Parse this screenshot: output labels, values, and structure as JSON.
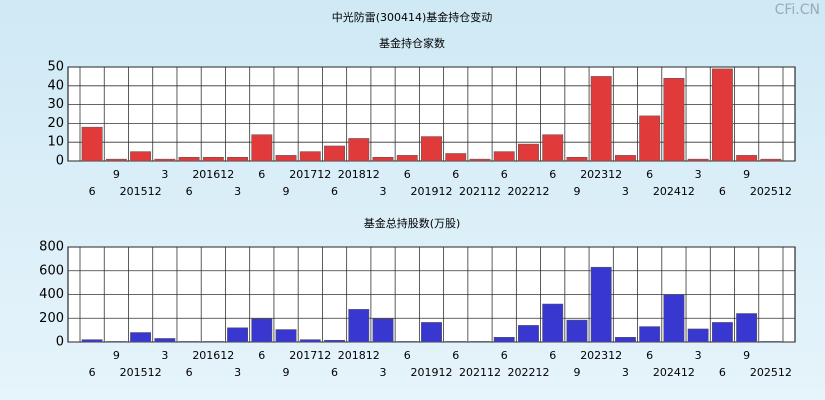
{
  "title": "中光防雷(300414)基金持仓变动",
  "watermark": "CFi.CN",
  "chart_data": [
    {
      "type": "bar",
      "title": "基金持仓家数",
      "color": "#e03a3a",
      "grid": true,
      "categories": [
        "6",
        "9",
        "201512",
        "3",
        "6",
        "201612",
        "3",
        "6",
        "9",
        "201712",
        "6",
        "201812",
        "3",
        "6",
        "201912",
        "6",
        "202112",
        "6",
        "202212",
        "6",
        "9",
        "202312",
        "3",
        "6",
        "202412",
        "3",
        "6",
        "9",
        "202512"
      ],
      "values": [
        18,
        1,
        5,
        1,
        2,
        2,
        2,
        14,
        3,
        5,
        8,
        12,
        2,
        3,
        13,
        4,
        1,
        5,
        9,
        14,
        2,
        45,
        3,
        24,
        44,
        1,
        49,
        3,
        1
      ],
      "ylim": [
        0,
        50
      ],
      "yticks": [
        0,
        10,
        20,
        30,
        40,
        50
      ]
    },
    {
      "type": "bar",
      "title": "基金总持股数(万股)",
      "color": "#3838d0",
      "grid": true,
      "categories": [
        "6",
        "9",
        "201512",
        "3",
        "6",
        "201612",
        "3",
        "6",
        "9",
        "201712",
        "6",
        "201812",
        "3",
        "6",
        "201912",
        "6",
        "202112",
        "6",
        "202212",
        "6",
        "9",
        "202312",
        "3",
        "6",
        "202412",
        "3",
        "6",
        "9",
        "202512"
      ],
      "values": [
        20,
        5,
        80,
        30,
        5,
        5,
        120,
        195,
        105,
        20,
        15,
        275,
        195,
        5,
        165,
        5,
        5,
        40,
        140,
        320,
        185,
        630,
        40,
        130,
        400,
        110,
        165,
        240,
        5
      ],
      "ylim": [
        0,
        800
      ],
      "yticks": [
        0,
        200,
        400,
        600,
        800
      ]
    }
  ]
}
